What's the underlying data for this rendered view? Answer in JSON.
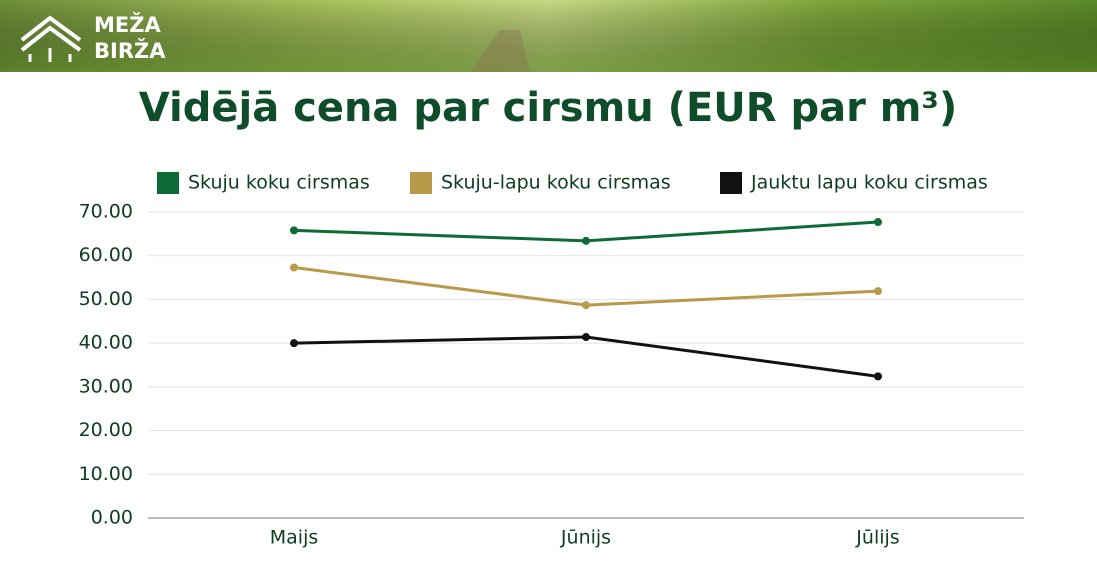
{
  "header": {
    "logo_lines": [
      "MEŽA",
      "BIRŽA"
    ]
  },
  "chart_data": {
    "type": "line",
    "title": "Vidējā cena par cirsmu (EUR par m³)",
    "categories": [
      "Maijs",
      "Jūnijs",
      "Jūlijs"
    ],
    "series": [
      {
        "name": "Skuju koku cirsmas",
        "color": "#0e6b35",
        "values": [
          65.8,
          63.4,
          67.7
        ]
      },
      {
        "name": "Skuju-lapu koku cirsmas",
        "color": "#b89a4a",
        "values": [
          57.3,
          48.7,
          51.9
        ]
      },
      {
        "name": "Jauktu lapu koku cirsmas",
        "color": "#111111",
        "values": [
          40.0,
          41.4,
          32.4
        ]
      }
    ],
    "ylim": [
      0,
      70
    ],
    "yticks": [
      {
        "value": 0,
        "label": "0.00"
      },
      {
        "value": 10,
        "label": "10.00"
      },
      {
        "value": 20,
        "label": "20.00"
      },
      {
        "value": 30,
        "label": "30.00"
      },
      {
        "value": 40,
        "label": "40.00"
      },
      {
        "value": 50,
        "label": "50.00"
      },
      {
        "value": 60,
        "label": "60.00"
      },
      {
        "value": 70,
        "label": "70.00"
      }
    ],
    "grid": true
  }
}
